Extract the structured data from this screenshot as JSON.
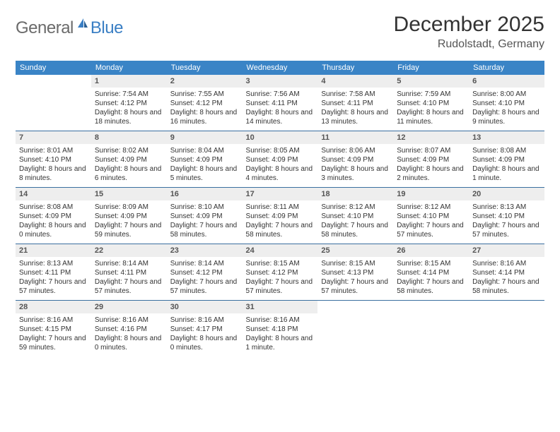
{
  "logo": {
    "general": "General",
    "blue": "Blue"
  },
  "title": "December 2025",
  "location": "Rudolstadt, Germany",
  "colors": {
    "header_bg": "#3a84c6",
    "header_fg": "#ffffff",
    "daynum_bg": "#eeeeee",
    "rule": "#3a6fa0",
    "logo_gray": "#6b6b6b",
    "logo_blue": "#3a7fc4",
    "text": "#333333"
  },
  "weekdays": [
    "Sunday",
    "Monday",
    "Tuesday",
    "Wednesday",
    "Thursday",
    "Friday",
    "Saturday"
  ],
  "weeks": [
    [
      {
        "blank": true
      },
      {
        "day": "1",
        "sunrise": "Sunrise: 7:54 AM",
        "sunset": "Sunset: 4:12 PM",
        "daylight": "Daylight: 8 hours and 18 minutes."
      },
      {
        "day": "2",
        "sunrise": "Sunrise: 7:55 AM",
        "sunset": "Sunset: 4:12 PM",
        "daylight": "Daylight: 8 hours and 16 minutes."
      },
      {
        "day": "3",
        "sunrise": "Sunrise: 7:56 AM",
        "sunset": "Sunset: 4:11 PM",
        "daylight": "Daylight: 8 hours and 14 minutes."
      },
      {
        "day": "4",
        "sunrise": "Sunrise: 7:58 AM",
        "sunset": "Sunset: 4:11 PM",
        "daylight": "Daylight: 8 hours and 13 minutes."
      },
      {
        "day": "5",
        "sunrise": "Sunrise: 7:59 AM",
        "sunset": "Sunset: 4:10 PM",
        "daylight": "Daylight: 8 hours and 11 minutes."
      },
      {
        "day": "6",
        "sunrise": "Sunrise: 8:00 AM",
        "sunset": "Sunset: 4:10 PM",
        "daylight": "Daylight: 8 hours and 9 minutes."
      }
    ],
    [
      {
        "day": "7",
        "sunrise": "Sunrise: 8:01 AM",
        "sunset": "Sunset: 4:10 PM",
        "daylight": "Daylight: 8 hours and 8 minutes."
      },
      {
        "day": "8",
        "sunrise": "Sunrise: 8:02 AM",
        "sunset": "Sunset: 4:09 PM",
        "daylight": "Daylight: 8 hours and 6 minutes."
      },
      {
        "day": "9",
        "sunrise": "Sunrise: 8:04 AM",
        "sunset": "Sunset: 4:09 PM",
        "daylight": "Daylight: 8 hours and 5 minutes."
      },
      {
        "day": "10",
        "sunrise": "Sunrise: 8:05 AM",
        "sunset": "Sunset: 4:09 PM",
        "daylight": "Daylight: 8 hours and 4 minutes."
      },
      {
        "day": "11",
        "sunrise": "Sunrise: 8:06 AM",
        "sunset": "Sunset: 4:09 PM",
        "daylight": "Daylight: 8 hours and 3 minutes."
      },
      {
        "day": "12",
        "sunrise": "Sunrise: 8:07 AM",
        "sunset": "Sunset: 4:09 PM",
        "daylight": "Daylight: 8 hours and 2 minutes."
      },
      {
        "day": "13",
        "sunrise": "Sunrise: 8:08 AM",
        "sunset": "Sunset: 4:09 PM",
        "daylight": "Daylight: 8 hours and 1 minute."
      }
    ],
    [
      {
        "day": "14",
        "sunrise": "Sunrise: 8:08 AM",
        "sunset": "Sunset: 4:09 PM",
        "daylight": "Daylight: 8 hours and 0 minutes."
      },
      {
        "day": "15",
        "sunrise": "Sunrise: 8:09 AM",
        "sunset": "Sunset: 4:09 PM",
        "daylight": "Daylight: 7 hours and 59 minutes."
      },
      {
        "day": "16",
        "sunrise": "Sunrise: 8:10 AM",
        "sunset": "Sunset: 4:09 PM",
        "daylight": "Daylight: 7 hours and 58 minutes."
      },
      {
        "day": "17",
        "sunrise": "Sunrise: 8:11 AM",
        "sunset": "Sunset: 4:09 PM",
        "daylight": "Daylight: 7 hours and 58 minutes."
      },
      {
        "day": "18",
        "sunrise": "Sunrise: 8:12 AM",
        "sunset": "Sunset: 4:10 PM",
        "daylight": "Daylight: 7 hours and 58 minutes."
      },
      {
        "day": "19",
        "sunrise": "Sunrise: 8:12 AM",
        "sunset": "Sunset: 4:10 PM",
        "daylight": "Daylight: 7 hours and 57 minutes."
      },
      {
        "day": "20",
        "sunrise": "Sunrise: 8:13 AM",
        "sunset": "Sunset: 4:10 PM",
        "daylight": "Daylight: 7 hours and 57 minutes."
      }
    ],
    [
      {
        "day": "21",
        "sunrise": "Sunrise: 8:13 AM",
        "sunset": "Sunset: 4:11 PM",
        "daylight": "Daylight: 7 hours and 57 minutes."
      },
      {
        "day": "22",
        "sunrise": "Sunrise: 8:14 AM",
        "sunset": "Sunset: 4:11 PM",
        "daylight": "Daylight: 7 hours and 57 minutes."
      },
      {
        "day": "23",
        "sunrise": "Sunrise: 8:14 AM",
        "sunset": "Sunset: 4:12 PM",
        "daylight": "Daylight: 7 hours and 57 minutes."
      },
      {
        "day": "24",
        "sunrise": "Sunrise: 8:15 AM",
        "sunset": "Sunset: 4:12 PM",
        "daylight": "Daylight: 7 hours and 57 minutes."
      },
      {
        "day": "25",
        "sunrise": "Sunrise: 8:15 AM",
        "sunset": "Sunset: 4:13 PM",
        "daylight": "Daylight: 7 hours and 57 minutes."
      },
      {
        "day": "26",
        "sunrise": "Sunrise: 8:15 AM",
        "sunset": "Sunset: 4:14 PM",
        "daylight": "Daylight: 7 hours and 58 minutes."
      },
      {
        "day": "27",
        "sunrise": "Sunrise: 8:16 AM",
        "sunset": "Sunset: 4:14 PM",
        "daylight": "Daylight: 7 hours and 58 minutes."
      }
    ],
    [
      {
        "day": "28",
        "sunrise": "Sunrise: 8:16 AM",
        "sunset": "Sunset: 4:15 PM",
        "daylight": "Daylight: 7 hours and 59 minutes."
      },
      {
        "day": "29",
        "sunrise": "Sunrise: 8:16 AM",
        "sunset": "Sunset: 4:16 PM",
        "daylight": "Daylight: 8 hours and 0 minutes."
      },
      {
        "day": "30",
        "sunrise": "Sunrise: 8:16 AM",
        "sunset": "Sunset: 4:17 PM",
        "daylight": "Daylight: 8 hours and 0 minutes."
      },
      {
        "day": "31",
        "sunrise": "Sunrise: 8:16 AM",
        "sunset": "Sunset: 4:18 PM",
        "daylight": "Daylight: 8 hours and 1 minute."
      },
      {
        "blank": true
      },
      {
        "blank": true
      },
      {
        "blank": true
      }
    ]
  ]
}
